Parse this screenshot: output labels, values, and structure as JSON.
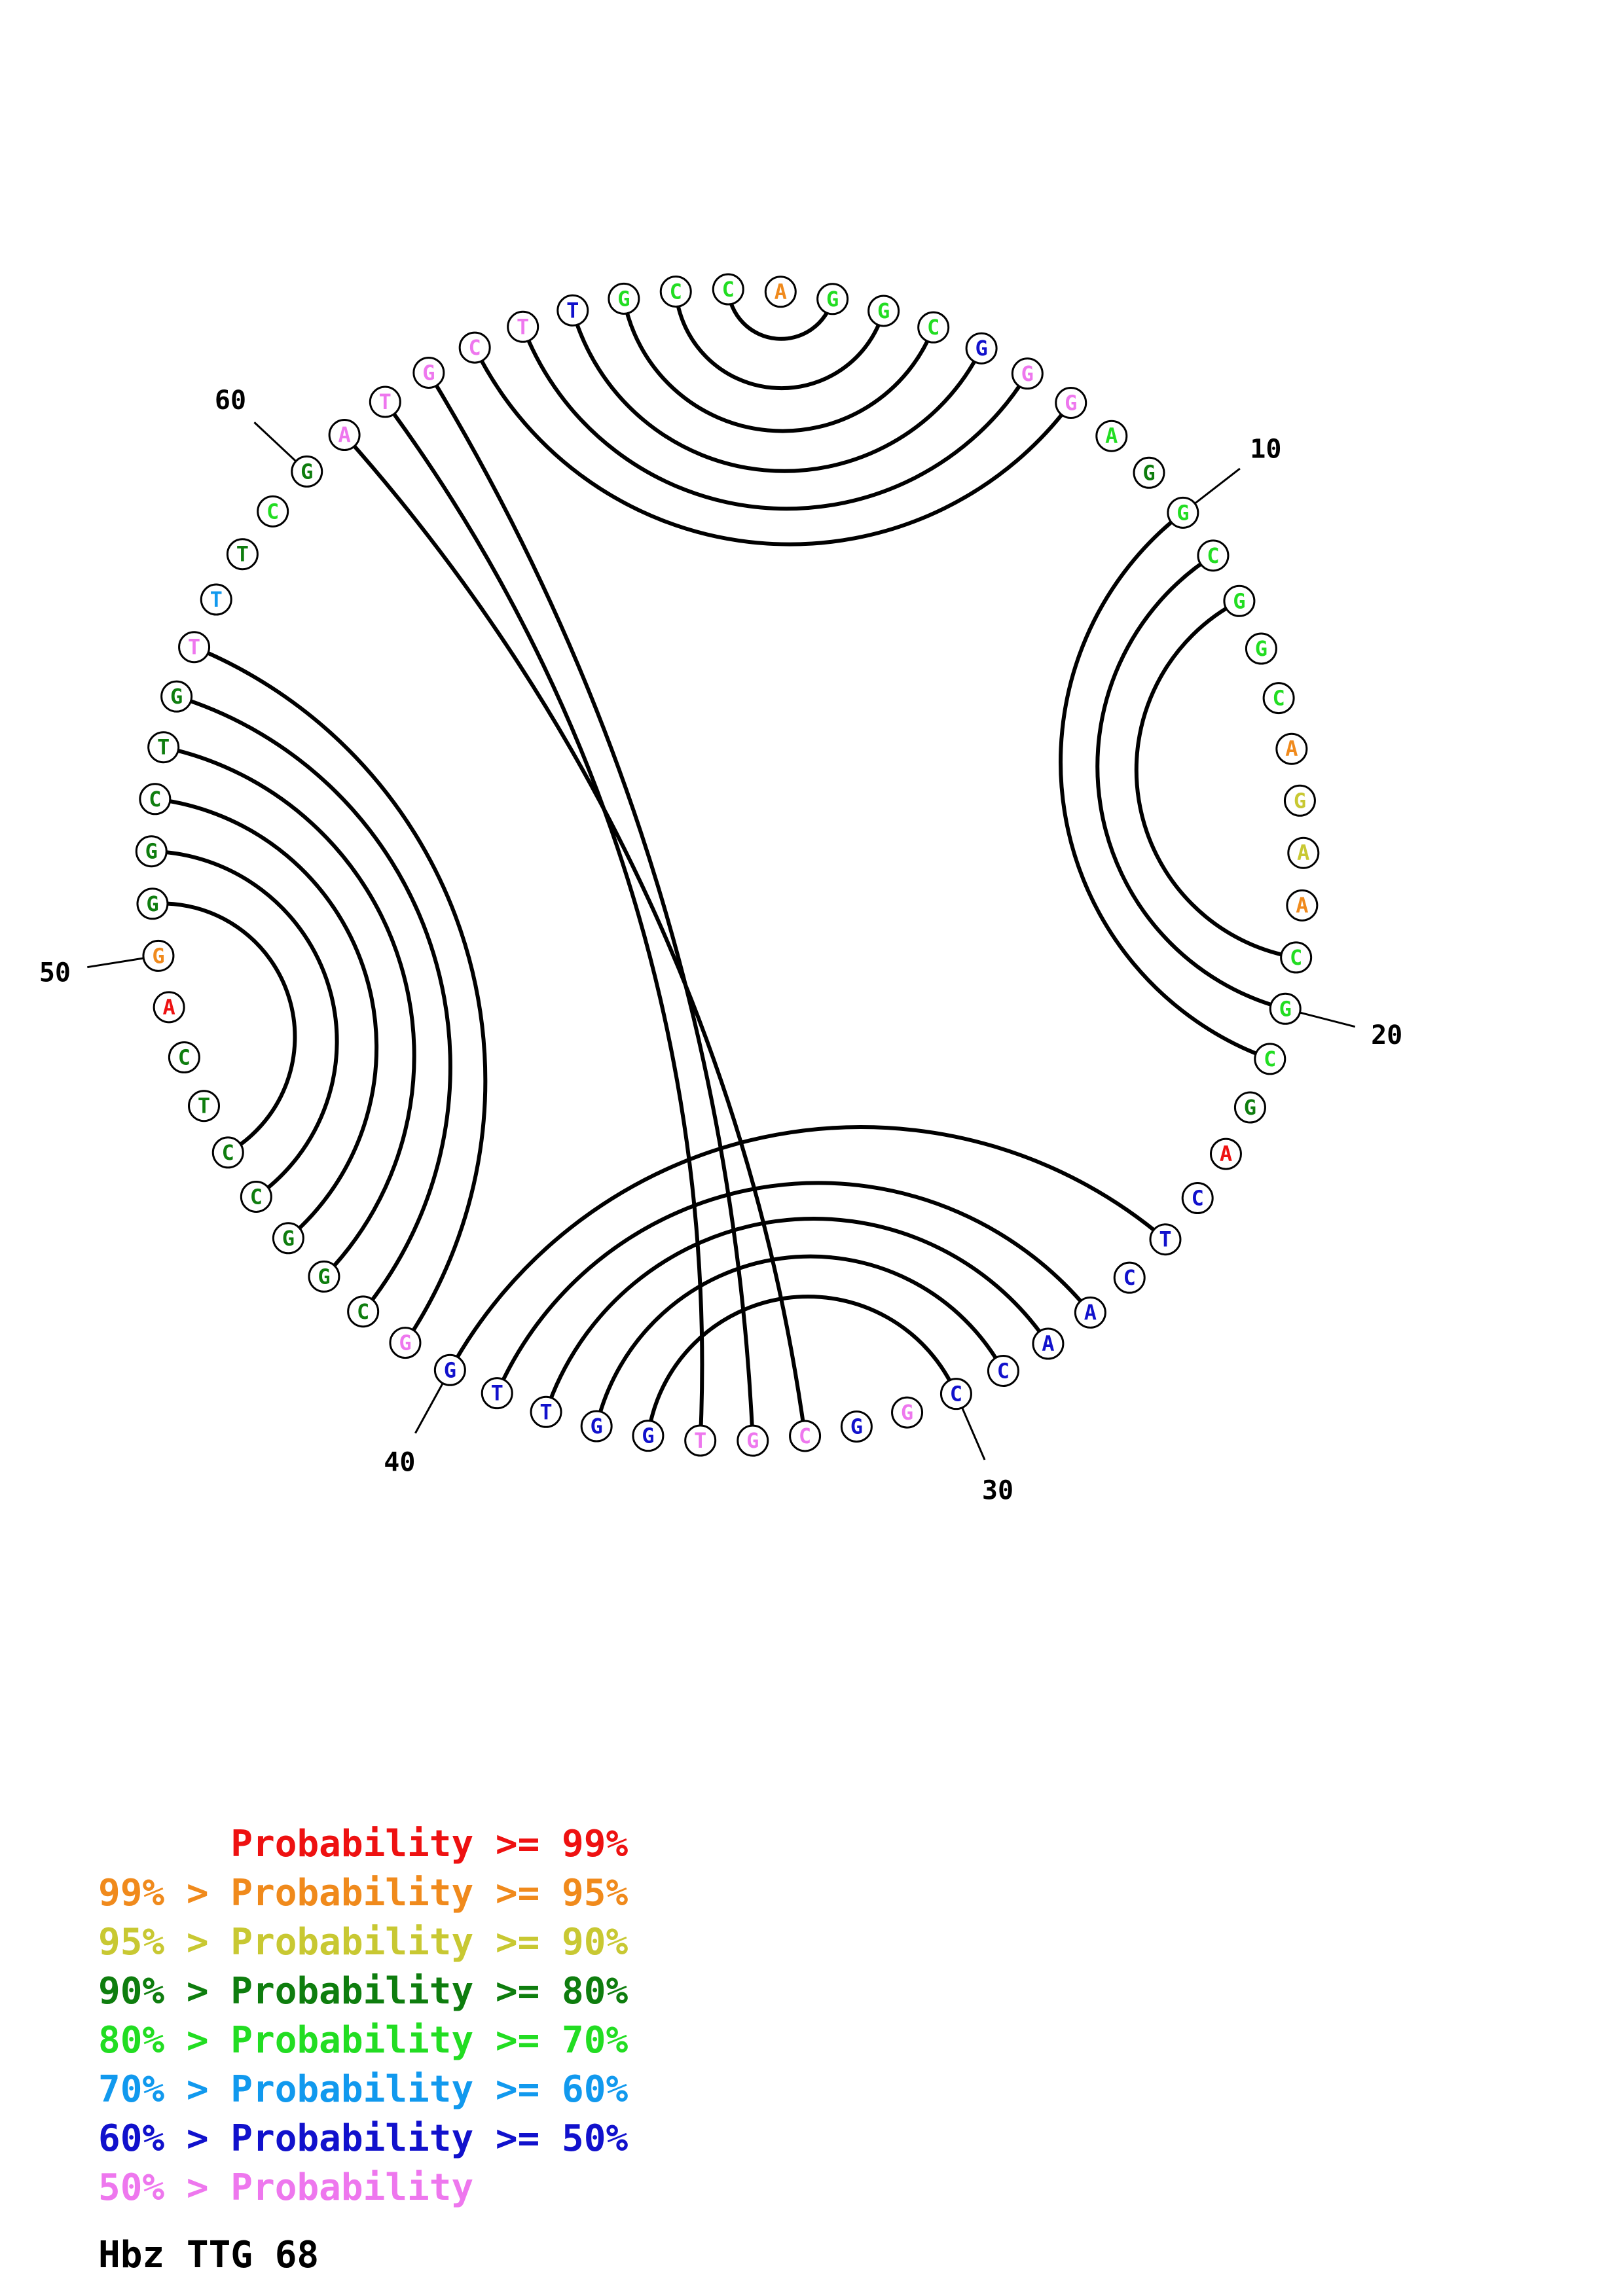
{
  "colors": {
    "p99": "#ee1111",
    "p95": "#f08a1c",
    "p90": "#c8c832",
    "p80": "#0e7d0e",
    "p70": "#22dd22",
    "p60": "#1199ee",
    "p50": "#1111cc",
    "plt50": "#ee77ee",
    "arc": "#000000"
  },
  "sequence": [
    {
      "n": 1,
      "b": "A",
      "c": "p95"
    },
    {
      "n": 2,
      "b": "G",
      "c": "p70"
    },
    {
      "n": 3,
      "b": "G",
      "c": "p70"
    },
    {
      "n": 4,
      "b": "C",
      "c": "p70"
    },
    {
      "n": 5,
      "b": "G",
      "c": "p50"
    },
    {
      "n": 6,
      "b": "G",
      "c": "plt50"
    },
    {
      "n": 7,
      "b": "G",
      "c": "plt50"
    },
    {
      "n": 8,
      "b": "A",
      "c": "p70"
    },
    {
      "n": 9,
      "b": "G",
      "c": "p80"
    },
    {
      "n": 10,
      "b": "G",
      "c": "p70"
    },
    {
      "n": 11,
      "b": "C",
      "c": "p70"
    },
    {
      "n": 12,
      "b": "G",
      "c": "p70"
    },
    {
      "n": 13,
      "b": "G",
      "c": "p70"
    },
    {
      "n": 14,
      "b": "C",
      "c": "p70"
    },
    {
      "n": 15,
      "b": "A",
      "c": "p95"
    },
    {
      "n": 16,
      "b": "G",
      "c": "p90"
    },
    {
      "n": 17,
      "b": "A",
      "c": "p90"
    },
    {
      "n": 18,
      "b": "A",
      "c": "p95"
    },
    {
      "n": 19,
      "b": "C",
      "c": "p70"
    },
    {
      "n": 20,
      "b": "G",
      "c": "p70"
    },
    {
      "n": 21,
      "b": "C",
      "c": "p70"
    },
    {
      "n": 22,
      "b": "G",
      "c": "p80"
    },
    {
      "n": 23,
      "b": "A",
      "c": "p99"
    },
    {
      "n": 24,
      "b": "C",
      "c": "p50"
    },
    {
      "n": 25,
      "b": "T",
      "c": "p50"
    },
    {
      "n": 26,
      "b": "C",
      "c": "p50"
    },
    {
      "n": 27,
      "b": "A",
      "c": "p50"
    },
    {
      "n": 28,
      "b": "A",
      "c": "p50"
    },
    {
      "n": 29,
      "b": "C",
      "c": "p50"
    },
    {
      "n": 30,
      "b": "C",
      "c": "p50"
    },
    {
      "n": 31,
      "b": "G",
      "c": "plt50"
    },
    {
      "n": 32,
      "b": "G",
      "c": "p50"
    },
    {
      "n": 33,
      "b": "C",
      "c": "plt50"
    },
    {
      "n": 34,
      "b": "G",
      "c": "plt50"
    },
    {
      "n": 35,
      "b": "T",
      "c": "plt50"
    },
    {
      "n": 36,
      "b": "G",
      "c": "p50"
    },
    {
      "n": 37,
      "b": "G",
      "c": "p50"
    },
    {
      "n": 38,
      "b": "T",
      "c": "p50"
    },
    {
      "n": 39,
      "b": "T",
      "c": "p50"
    },
    {
      "n": 40,
      "b": "G",
      "c": "p50"
    },
    {
      "n": 41,
      "b": "G",
      "c": "plt50"
    },
    {
      "n": 42,
      "b": "C",
      "c": "p80"
    },
    {
      "n": 43,
      "b": "G",
      "c": "p80"
    },
    {
      "n": 44,
      "b": "G",
      "c": "p80"
    },
    {
      "n": 45,
      "b": "C",
      "c": "p80"
    },
    {
      "n": 46,
      "b": "C",
      "c": "p80"
    },
    {
      "n": 47,
      "b": "T",
      "c": "p80"
    },
    {
      "n": 48,
      "b": "C",
      "c": "p80"
    },
    {
      "n": 49,
      "b": "A",
      "c": "p99"
    },
    {
      "n": 50,
      "b": "G",
      "c": "p95"
    },
    {
      "n": 51,
      "b": "G",
      "c": "p80"
    },
    {
      "n": 52,
      "b": "G",
      "c": "p80"
    },
    {
      "n": 53,
      "b": "C",
      "c": "p80"
    },
    {
      "n": 54,
      "b": "T",
      "c": "p80"
    },
    {
      "n": 55,
      "b": "G",
      "c": "p80"
    },
    {
      "n": 56,
      "b": "T",
      "c": "plt50"
    },
    {
      "n": 57,
      "b": "T",
      "c": "p60"
    },
    {
      "n": 58,
      "b": "T",
      "c": "p80"
    },
    {
      "n": 59,
      "b": "C",
      "c": "p70"
    },
    {
      "n": 60,
      "b": "G",
      "c": "p80"
    },
    {
      "n": 61,
      "b": "A",
      "c": "plt50"
    },
    {
      "n": 62,
      "b": "T",
      "c": "plt50"
    },
    {
      "n": 63,
      "b": "G",
      "c": "plt50"
    },
    {
      "n": 64,
      "b": "C",
      "c": "plt50"
    },
    {
      "n": 65,
      "b": "T",
      "c": "plt50"
    },
    {
      "n": 66,
      "b": "T",
      "c": "p50"
    },
    {
      "n": 67,
      "b": "G",
      "c": "p70"
    },
    {
      "n": 68,
      "b": "C",
      "c": "p70"
    },
    {
      "n": 69,
      "b": "C",
      "c": "p70"
    }
  ],
  "pairs": [
    [
      2,
      69
    ],
    [
      3,
      68
    ],
    [
      4,
      67
    ],
    [
      5,
      66
    ],
    [
      6,
      65
    ],
    [
      7,
      64
    ],
    [
      10,
      21
    ],
    [
      11,
      20
    ],
    [
      12,
      19
    ],
    [
      25,
      40
    ],
    [
      27,
      39
    ],
    [
      28,
      38
    ],
    [
      29,
      37
    ],
    [
      30,
      36
    ],
    [
      34,
      63
    ],
    [
      35,
      62
    ],
    [
      33,
      61
    ],
    [
      41,
      56
    ],
    [
      42,
      55
    ],
    [
      43,
      54
    ],
    [
      44,
      53
    ],
    [
      45,
      52
    ],
    [
      46,
      51
    ]
  ],
  "ticks": [
    {
      "n": 10,
      "label": "10"
    },
    {
      "n": 20,
      "label": "20"
    },
    {
      "n": 30,
      "label": "30"
    },
    {
      "n": 40,
      "label": "40"
    },
    {
      "n": 50,
      "label": "50"
    },
    {
      "n": 60,
      "label": "60"
    }
  ],
  "legend": [
    {
      "prefix": "",
      "text": "Probability >= 99%",
      "color": "p99"
    },
    {
      "prefix": "99% > ",
      "text": "Probability >= 95%",
      "color": "p95"
    },
    {
      "prefix": "95% > ",
      "text": "Probability >= 90%",
      "color": "p90"
    },
    {
      "prefix": "90% > ",
      "text": "Probability >= 80%",
      "color": "p80"
    },
    {
      "prefix": "80% > ",
      "text": "Probability >= 70%",
      "color": "p70"
    },
    {
      "prefix": "70% > ",
      "text": "Probability >= 60%",
      "color": "p60"
    },
    {
      "prefix": "60% > ",
      "text": "Probability >= 50%",
      "color": "p50"
    },
    {
      "prefix": "50% > ",
      "text": "Probability",
      "color": "plt50"
    }
  ],
  "caption": "Hbz TTG 68"
}
